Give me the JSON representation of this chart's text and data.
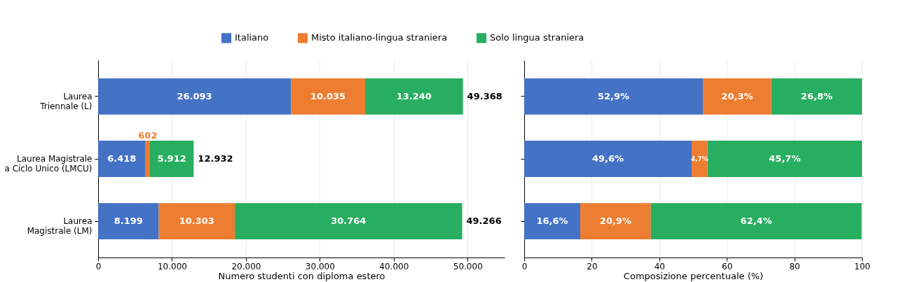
{
  "chart_data": [
    {
      "type": "bar",
      "orientation": "horizontal",
      "stacked": true,
      "xlabel": "Numero studenti con diploma estero",
      "categories": [
        "Laurea\nTriennale (L)",
        "Laurea Magistrale\na Ciclo Unico (LMCU)",
        "Laurea\nMagistrale (LM)"
      ],
      "series": [
        {
          "name": "Italiano",
          "color": "#4472c4",
          "values": [
            26093,
            6418,
            8199
          ],
          "value_labels": [
            "26.093",
            "6.418",
            "8.199"
          ]
        },
        {
          "name": "Misto italiano-lingua straniera",
          "color": "#ed7d31",
          "values": [
            10035,
            602,
            10303
          ],
          "value_labels": [
            "10.035",
            "602",
            "10.303"
          ]
        },
        {
          "name": "Solo lingua straniera",
          "color": "#27ae60",
          "values": [
            13240,
            5912,
            30764
          ],
          "value_labels": [
            "13.240",
            "5.912",
            "30.764"
          ]
        }
      ],
      "totals": [
        "49.368",
        "12.932",
        "49.266"
      ],
      "xlim": [
        0,
        55000
      ],
      "xticks": [
        0,
        {
          "value": 10000,
          "label": "10.000"
        },
        {
          "value": 20000,
          "label": "20.000"
        },
        {
          "value": 30000,
          "label": "30.000"
        },
        {
          "value": 40000,
          "label": "40.000"
        },
        {
          "value": 50000,
          "label": "50.000"
        }
      ],
      "grid": "x",
      "legend": "top"
    },
    {
      "type": "bar",
      "orientation": "horizontal",
      "stacked": true,
      "xlabel": "Composizione percentuale (%)",
      "categories": [
        null,
        null,
        null
      ],
      "series": [
        {
          "name": "Italiano",
          "color": "#4472c4",
          "values": [
            52.9,
            49.6,
            16.6
          ],
          "value_labels": [
            "52,9%",
            "49,6%",
            "16,6%"
          ]
        },
        {
          "name": "Misto italiano-lingua straniera",
          "color": "#ed7d31",
          "values": [
            20.3,
            4.7,
            20.9
          ],
          "value_labels": [
            "20,3%",
            "4,7%",
            "20,9%"
          ]
        },
        {
          "name": "Solo lingua straniera",
          "color": "#27ae60",
          "values": [
            26.8,
            45.7,
            62.4
          ],
          "value_labels": [
            "26,8%",
            "45,7%",
            "62,4%"
          ]
        }
      ],
      "xlim": [
        0,
        100
      ],
      "xticks": [
        0,
        20,
        40,
        60,
        80,
        100
      ],
      "grid": "x",
      "legend": "top",
      "tick_labels": "x"
    }
  ]
}
